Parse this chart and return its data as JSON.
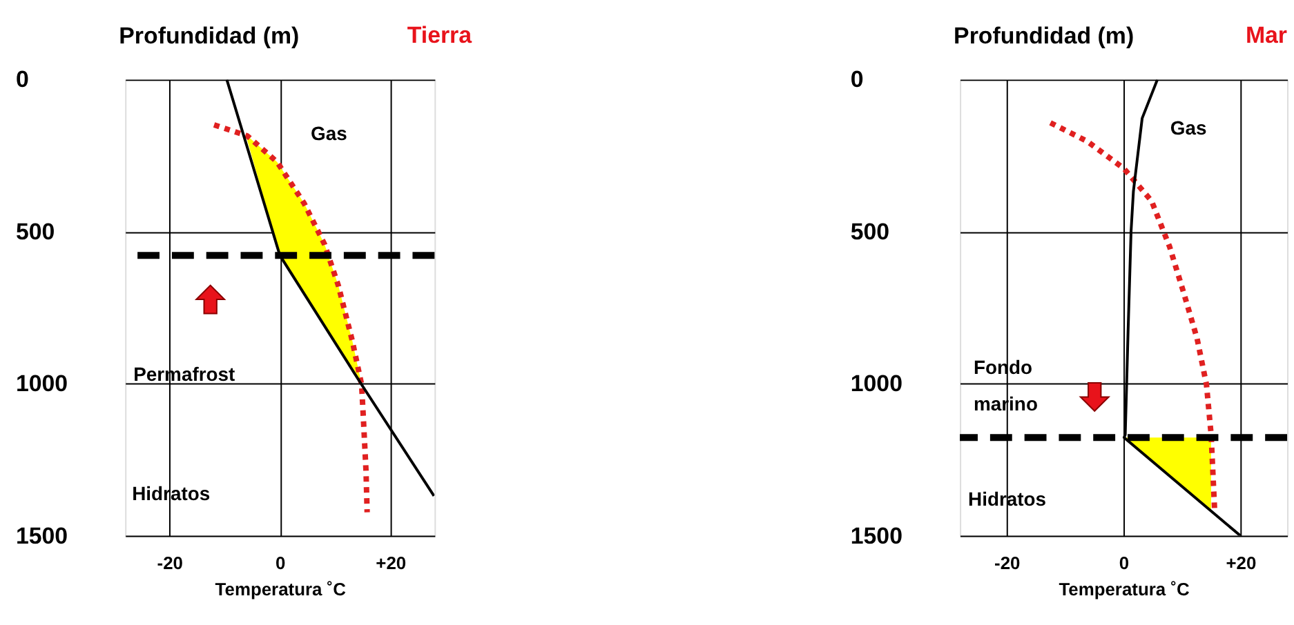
{
  "chart_data": [
    {
      "type": "line",
      "title": "Tierra",
      "ylabel": "Profundidad (m)",
      "xlabel": "Temperatura ˚C",
      "xlim": [
        -28,
        28
      ],
      "ylim": [
        1500,
        0
      ],
      "xticks": [
        -20,
        0,
        {
          "value": 20,
          "label": "+20"
        }
      ],
      "yticks": [
        0,
        500,
        1000,
        1500
      ],
      "grid": true,
      "legend": false,
      "marker": "none",
      "series": [
        {
          "type": "area",
          "color": "#ffff00",
          "x": [
            -6.2,
            -0.5,
            4.4,
            8.1,
            10.6,
            13.1,
            14.8,
            0,
            -6.2
          ],
          "values": [
            180,
            271,
            407,
            542,
            678,
            858,
            1003,
            578,
            180
          ]
        },
        {
          "type": "line",
          "color": "#e02020",
          "line_style": "dotted",
          "x": [
            -11.9,
            -5.9,
            -0.5,
            4.4,
            8.1,
            10.6,
            13.1,
            14.8,
            15.1,
            15.6,
            15.8
          ],
          "values": [
            149,
            185,
            271,
            407,
            542,
            678,
            858,
            1003,
            1107,
            1288,
            1423
          ]
        },
        {
          "type": "line",
          "color": "#000000",
          "line_style": "solid",
          "x": [
            -9.6,
            0,
            14.8,
            27.9
          ],
          "values": [
            0,
            578,
            1003,
            1369
          ]
        }
      ],
      "ref_lines": [
        {
          "axis": "y",
          "value": 578,
          "color": "#000000",
          "line_style": "dashed"
        }
      ],
      "annotations": [
        "Gas",
        "Permafrost",
        "Hidratos"
      ]
    },
    {
      "type": "line",
      "title": "Mar",
      "ylabel": "Profundidad (m)",
      "xlabel": "Temperatura ˚C",
      "xlim": [
        -28,
        28
      ],
      "ylim": [
        1500,
        0
      ],
      "xticks": [
        -20,
        0,
        {
          "value": 20,
          "label": "+20"
        }
      ],
      "yticks": [
        0,
        500,
        1000,
        1500
      ],
      "grid": true,
      "legend": false,
      "marker": "none",
      "series": [
        {
          "type": "area",
          "color": "#ffff00",
          "x": [
            0.1,
            15.0,
            15.0,
            0.1
          ],
          "values": [
            1177,
            1177,
            1418,
            1177
          ]
        },
        {
          "type": "line",
          "color": "#e02020",
          "line_style": "dotted",
          "x": [
            -12.5,
            -6.2,
            0.1,
            4.8,
            7.9,
            10.3,
            12.6,
            14.2,
            15.0,
            15.4,
            15.6
          ],
          "values": [
            142,
            203,
            293,
            399,
            550,
            701,
            852,
            1003,
            1169,
            1335,
            1418
          ]
        },
        {
          "type": "line",
          "color": "#000000",
          "line_style": "solid",
          "x": [
            5.8,
            3.2,
            1.7,
            1.3,
            0.8,
            0.3,
            0.1,
            20
          ],
          "values": [
            0,
            127,
            367,
            498,
            819,
            1168,
            1177,
            1500
          ]
        }
      ],
      "ref_lines": [
        {
          "axis": "y",
          "value": 1177,
          "color": "#000000",
          "line_style": "dashed"
        }
      ],
      "annotations": [
        "Gas",
        "Fondo marino",
        "Hidratos"
      ]
    }
  ]
}
